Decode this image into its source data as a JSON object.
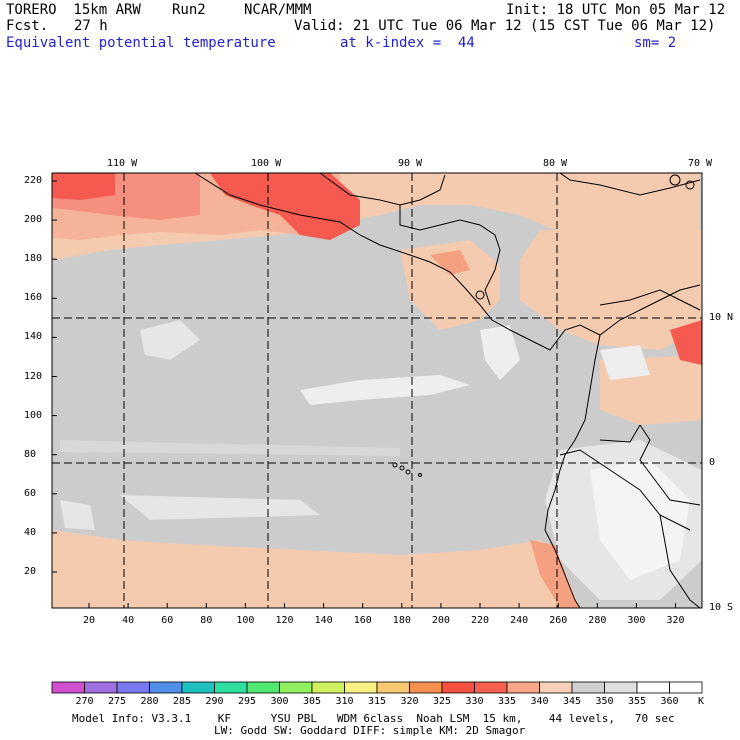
{
  "header": {
    "model": "TORERO  15km ARW",
    "run": "Run2",
    "org": "NCAR/MMM",
    "init": "Init: 18 UTC Mon 05 Mar 12",
    "fcst": "Fcst.",
    "fcst_hours": "27 h",
    "valid": "Valid: 21 UTC Tue 06 Mar 12 (15 CST Tue 06 Mar 12)",
    "field": "Equivalent potential temperature",
    "level": "at k-index =  44",
    "smoothing": "sm= 2"
  },
  "map": {
    "lon_labels": [
      "110 W",
      "100 W",
      "90 W",
      "80 W",
      "70 W"
    ],
    "lat_labels": [
      "10 N",
      "0",
      "10 S"
    ],
    "y_ticks": [
      "220",
      "200",
      "180",
      "160",
      "140",
      "120",
      "100",
      "80",
      "60",
      "40",
      "20"
    ],
    "x_ticks": [
      "20",
      "40",
      "60",
      "80",
      "100",
      "120",
      "140",
      "160",
      "180",
      "200",
      "220",
      "240",
      "260",
      "280",
      "300",
      "320"
    ],
    "colors": {
      "grey": "#cccccc",
      "light_grey": "#e8e8e8",
      "white": "#f7f7f7",
      "peach": "#f5cbb0",
      "salmon": "#f5a080",
      "red": "#f55a50",
      "border": "#000000"
    }
  },
  "colorbar": {
    "labels": [
      "270",
      "275",
      "280",
      "285",
      "290",
      "295",
      "300",
      "305",
      "310",
      "315",
      "320",
      "325",
      "330",
      "335",
      "340",
      "345",
      "350",
      "355",
      "360"
    ],
    "unit": "K",
    "colors": [
      "#d050d0",
      "#a070e0",
      "#7878f0",
      "#5090e8",
      "#20c0c0",
      "#30e0a0",
      "#50e870",
      "#90f060",
      "#d0f060",
      "#f8f080",
      "#f8c870",
      "#f89050",
      "#f85040",
      "#f86050",
      "#f8a888",
      "#f8d0b8",
      "#d0d0d0",
      "#e0e0e0",
      "#ffffff"
    ]
  },
  "footer": {
    "line1": "Model Info: V3.3.1    KF      YSU PBL   WDM 6class  Noah LSM  15 km,    44 levels,   70 sec",
    "line2": "LW: Godd SW: Goddard DIFF: simple KM: 2D Smagor"
  }
}
